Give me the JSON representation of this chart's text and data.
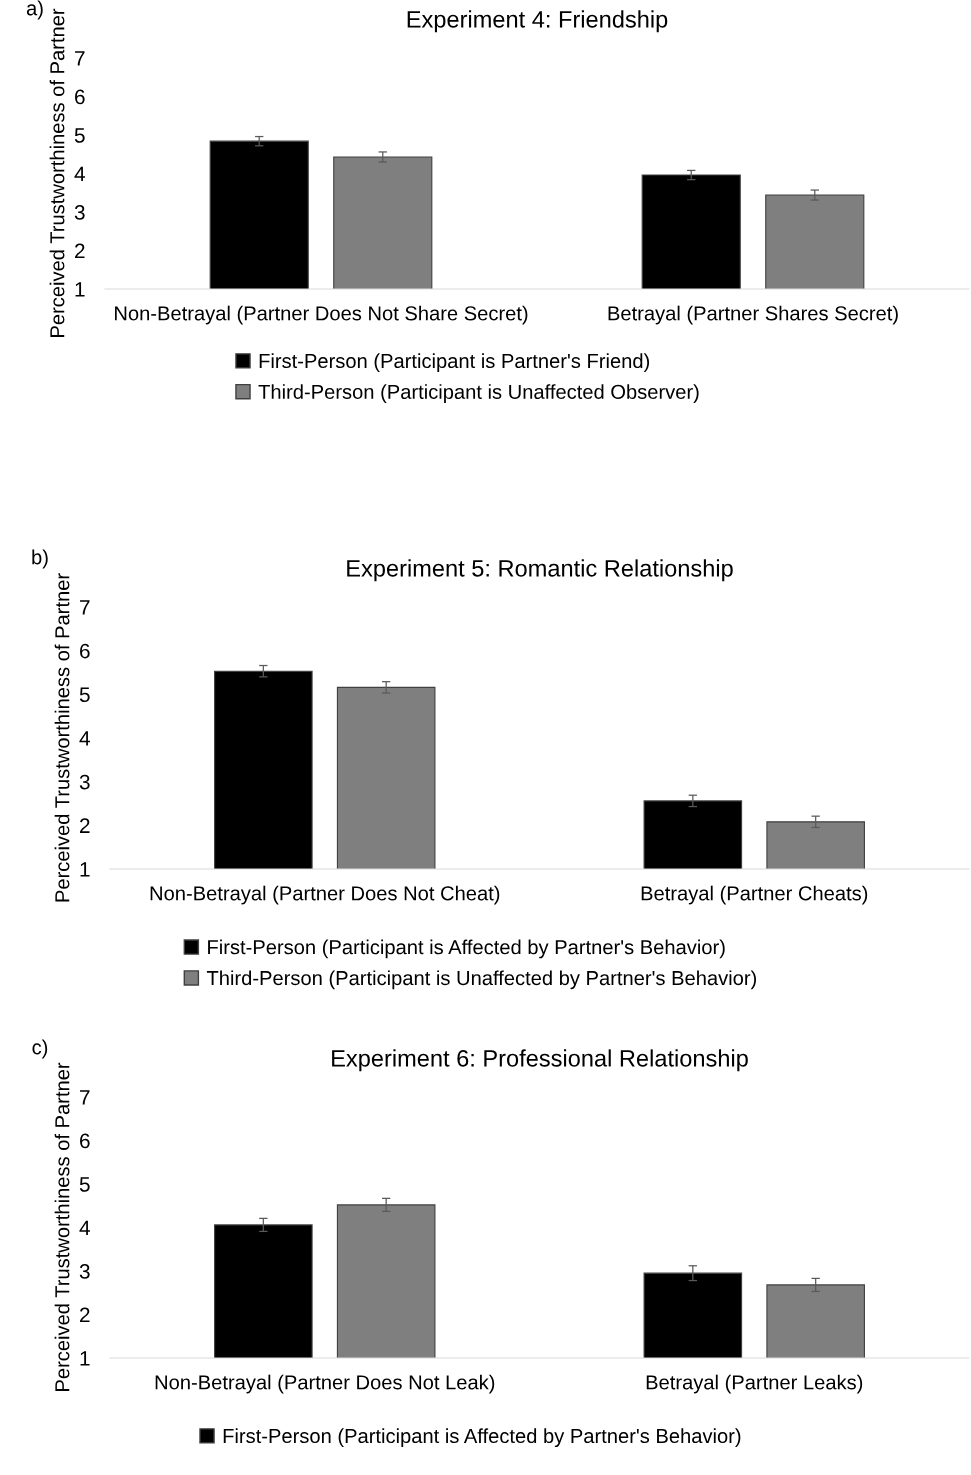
{
  "chart_data": [
    {
      "type": "bar",
      "title": "Experiment 4: Friendship",
      "ylabel": "Perceived Trustworthiness of Partner",
      "annotations": [
        "a)"
      ],
      "categories": [
        "Non-Betrayal (Partner Does Not Share Secret)",
        "Betrayal (Partner Shares Secret)"
      ],
      "ylim": [
        1,
        7
      ],
      "yticks": [
        1,
        2,
        3,
        4,
        5,
        6,
        7
      ],
      "legend": "bottom",
      "series": [
        {
          "name": "First-Person (Participant is Partner's Friend)",
          "color": "#000000",
          "values": [
            4.84,
            3.96
          ],
          "errors": [
            0.12,
            0.12
          ]
        },
        {
          "name": "Third-Person (Participant is Unaffected Observer)",
          "color": "#7f7f7f",
          "values": [
            4.43,
            3.44
          ],
          "errors": [
            0.13,
            0.13
          ]
        }
      ]
    },
    {
      "type": "bar",
      "title": "Experiment 5: Romantic Relationship",
      "ylabel": "Perceived Trustworthiness of Partner",
      "annotations": [
        "b)"
      ],
      "categories": [
        "Non-Betrayal (Partner Does Not Cheat)",
        "Betrayal (Partner Cheats)"
      ],
      "ylim": [
        1,
        7
      ],
      "yticks": [
        1,
        2,
        3,
        4,
        5,
        6,
        7
      ],
      "legend": "bottom",
      "series": [
        {
          "name": "First-Person (Participant is Affected by Partner's Behavior)",
          "color": "#000000",
          "values": [
            5.53,
            2.56
          ],
          "errors": [
            0.13,
            0.13
          ]
        },
        {
          "name": "Third-Person (Participant is Unaffected by Partner's Behavior)",
          "color": "#7f7f7f",
          "values": [
            5.16,
            2.08
          ],
          "errors": [
            0.13,
            0.13
          ]
        }
      ]
    },
    {
      "type": "bar",
      "title": "Experiment 6: Professional Relationship",
      "ylabel": "Perceived Trustworthiness of Partner",
      "annotations": [
        "c)"
      ],
      "categories": [
        "Non-Betrayal (Partner Does Not Leak)",
        "Betrayal (Partner Leaks)"
      ],
      "ylim": [
        1,
        7
      ],
      "yticks": [
        1,
        2,
        3,
        4,
        5,
        6,
        7
      ],
      "legend": "bottom",
      "series": [
        {
          "name": "First-Person (Participant is Affected by Partner's Behavior)",
          "color": "#000000",
          "values": [
            4.06,
            2.95
          ],
          "errors": [
            0.15,
            0.17
          ]
        },
        {
          "color": "#7f7f7f",
          "values": [
            4.52,
            2.68
          ],
          "errors": [
            0.15,
            0.15
          ]
        }
      ]
    }
  ]
}
